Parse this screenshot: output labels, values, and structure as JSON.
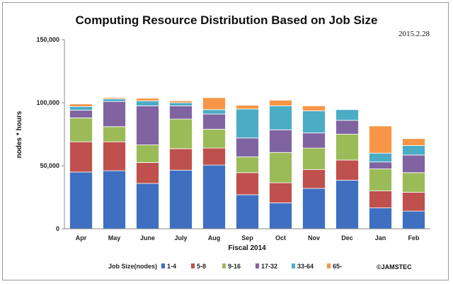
{
  "title": "Computing Resource Distribution Based on Job Size",
  "date_stamp": "2015.2.28",
  "credit": "©JAMSTEC",
  "legend_title": "Job Size(nodes)",
  "chart_data": {
    "type": "bar",
    "stacked": true,
    "title": "Computing Resource Distribution Based on Job Size",
    "xlabel": "Fiscal 2014",
    "ylabel": "nodes * hours",
    "ylim": [
      0,
      150000
    ],
    "yticks": [
      0,
      50000,
      100000,
      150000
    ],
    "ytick_labels": [
      "0",
      "50,000",
      "100,000",
      "150,000"
    ],
    "grid": false,
    "legend_position": "bottom",
    "categories": [
      "Apr",
      "May",
      "June",
      "July",
      "Aug",
      "Sep",
      "Oct",
      "Nov",
      "Dec",
      "Jan",
      "Feb"
    ],
    "series": [
      {
        "name": "1-4",
        "color": "#3f6fc0",
        "values": [
          45000,
          46000,
          36000,
          46500,
          50500,
          27000,
          20500,
          32000,
          38500,
          16500,
          14000
        ]
      },
      {
        "name": "5-8",
        "color": "#c0504d",
        "values": [
          24000,
          23000,
          16500,
          17000,
          13500,
          17500,
          16000,
          15000,
          16000,
          13500,
          15000
        ]
      },
      {
        "name": "9-16",
        "color": "#9bbb59",
        "values": [
          19000,
          12000,
          14000,
          23500,
          15000,
          12500,
          24000,
          17000,
          20500,
          17500,
          15500
        ]
      },
      {
        "name": "17-32",
        "color": "#8064a2",
        "values": [
          6000,
          20000,
          31000,
          10500,
          12000,
          15000,
          18000,
          12000,
          11000,
          5500,
          14000
        ]
      },
      {
        "name": "33-64",
        "color": "#4bacc6",
        "values": [
          3000,
          2000,
          4000,
          2500,
          3500,
          23000,
          19000,
          17500,
          8500,
          7000,
          7500
        ]
      },
      {
        "name": "65-",
        "color": "#f79646",
        "values": [
          2000,
          1000,
          2000,
          1500,
          9500,
          3000,
          4500,
          4000,
          0,
          21500,
          5500
        ]
      }
    ]
  }
}
